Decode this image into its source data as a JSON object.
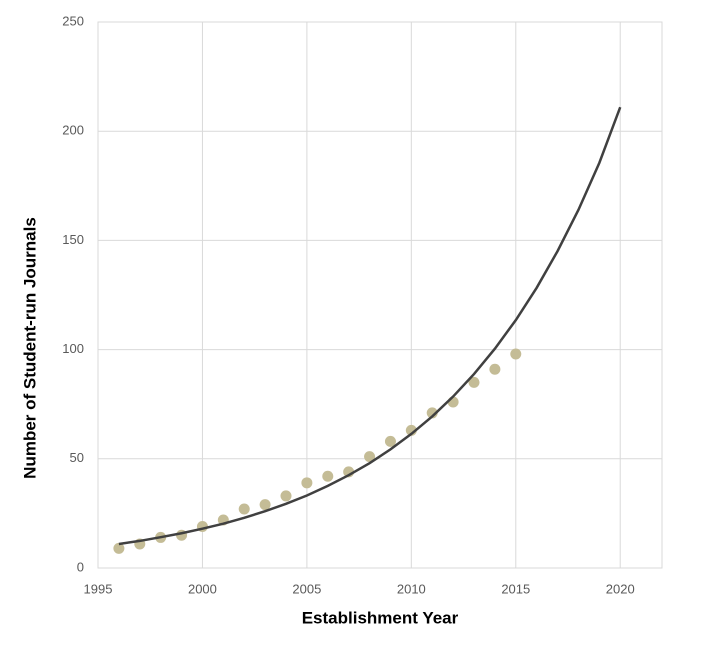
{
  "chart_data": {
    "type": "scatter",
    "x_label": "Establishment Year",
    "y_label": "Number of Student-run Journals",
    "xlim": [
      1995,
      2022
    ],
    "xticks": [
      1995,
      2000,
      2005,
      2010,
      2015,
      2020
    ],
    "ylim": [
      0,
      250
    ],
    "yticks": [
      0,
      50,
      100,
      150,
      200,
      250
    ],
    "grid": true,
    "series": [
      {
        "type": "scatter",
        "color": "#c4bc96",
        "x": [
          1996,
          1997,
          1998,
          1999,
          2000,
          2001,
          2002,
          2003,
          2004,
          2005,
          2006,
          2007,
          2008,
          2009,
          2010,
          2011,
          2012,
          2013,
          2014,
          2015
        ],
        "values": [
          9,
          11,
          14,
          15,
          19,
          22,
          27,
          29,
          33,
          39,
          42,
          44,
          51,
          58,
          63,
          71,
          76,
          85,
          91,
          98
        ]
      },
      {
        "type": "line",
        "color": "#404040",
        "x": [
          1996,
          1997,
          1998,
          1999,
          2000,
          2001,
          2002,
          2003,
          2004,
          2005,
          2006,
          2007,
          2008,
          2009,
          2010,
          2011,
          2012,
          2013,
          2014,
          2015,
          2016,
          2017,
          2018,
          2019,
          2020
        ],
        "values": [
          11,
          12.4,
          14.1,
          15.9,
          18,
          20.3,
          23,
          26,
          29.4,
          33.2,
          37.6,
          42.5,
          48,
          54.3,
          61.4,
          69.4,
          78.5,
          88.8,
          100.4,
          113.5,
          128.3,
          145.1,
          164,
          185.5,
          211
        ]
      }
    ]
  }
}
